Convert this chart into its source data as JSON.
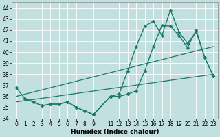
{
  "xlabel": "Humidex (Indice chaleur)",
  "bg_color": "#c2e0e0",
  "grid_color": "#b0d0d0",
  "line_color": "#1a7a6a",
  "ylim": [
    34,
    44.5
  ],
  "xlim": [
    -0.5,
    23.5
  ],
  "yticks": [
    34,
    35,
    36,
    37,
    38,
    39,
    40,
    41,
    42,
    43,
    44
  ],
  "xticks": [
    0,
    1,
    2,
    3,
    4,
    5,
    6,
    7,
    8,
    9,
    11,
    12,
    13,
    14,
    15,
    16,
    17,
    18,
    19,
    20,
    21,
    22,
    23
  ],
  "xtick_labels": [
    "0",
    "1",
    "2",
    "3",
    "4",
    "5",
    "6",
    "7",
    "8",
    "9",
    "11",
    "12",
    "13",
    "14",
    "15",
    "16",
    "17",
    "18",
    "19",
    "20",
    "21",
    "22",
    "23"
  ],
  "series": [
    {
      "x": [
        0,
        1,
        2,
        3,
        4,
        5,
        6,
        7,
        8,
        9,
        11,
        12,
        13,
        14,
        15,
        16,
        17,
        18,
        19,
        20,
        21,
        22,
        23
      ],
      "y": [
        36.8,
        35.8,
        35.5,
        35.15,
        35.3,
        35.3,
        35.5,
        35.0,
        34.7,
        34.35,
        36.0,
        36.2,
        38.3,
        40.5,
        42.35,
        42.8,
        41.5,
        43.8,
        41.8,
        40.8,
        41.85,
        39.5,
        37.85
      ],
      "marker": "D",
      "markersize": 2.5,
      "linewidth": 1.0
    },
    {
      "x": [
        1,
        2,
        3,
        4,
        5,
        6,
        7,
        8,
        9,
        11,
        12,
        13,
        14,
        15,
        16,
        17,
        18,
        19,
        20,
        21,
        22,
        23
      ],
      "y": [
        35.8,
        35.5,
        35.15,
        35.3,
        35.3,
        35.5,
        35.0,
        34.7,
        34.35,
        36.0,
        36.0,
        36.2,
        36.5,
        38.3,
        40.5,
        42.4,
        42.35,
        41.5,
        40.4,
        42.0,
        39.5,
        37.85
      ],
      "marker": "D",
      "markersize": 2.5,
      "linewidth": 1.0
    },
    {
      "x": [
        0,
        23
      ],
      "y": [
        35.5,
        38.0
      ],
      "marker": null,
      "markersize": 0,
      "linewidth": 0.9
    },
    {
      "x": [
        0,
        23
      ],
      "y": [
        36.0,
        40.5
      ],
      "marker": null,
      "markersize": 0,
      "linewidth": 0.9
    }
  ]
}
